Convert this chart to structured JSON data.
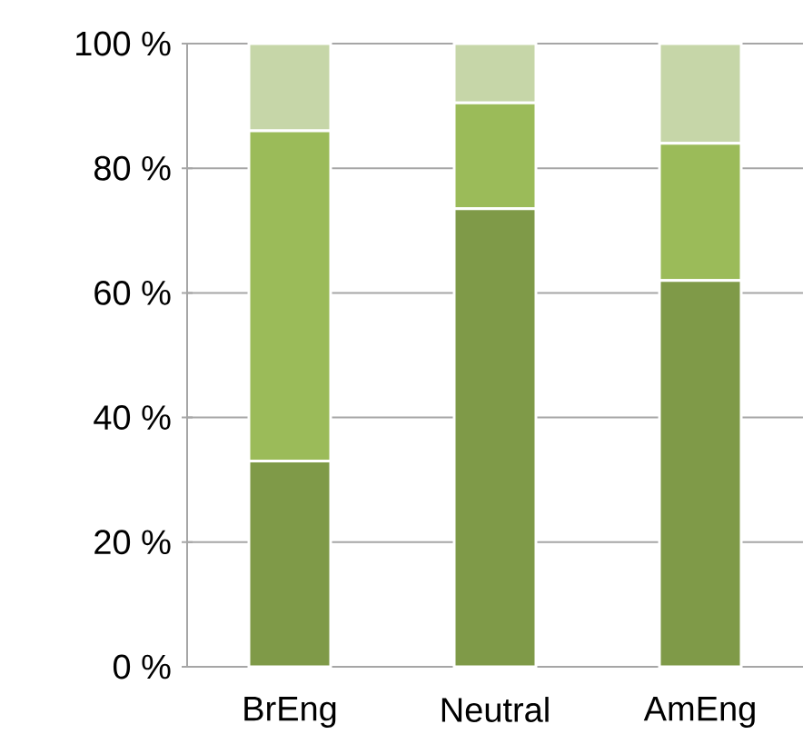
{
  "chart_data": {
    "type": "bar",
    "stacked": true,
    "grid": "y",
    "categories": [
      "BrEng",
      "Neutral",
      "AmEng"
    ],
    "series": [
      {
        "color": "#7f9a48",
        "values": [
          33,
          73.5,
          62
        ]
      },
      {
        "color": "#9bbb59",
        "values": [
          53,
          17,
          22
        ]
      },
      {
        "color": "#c6d6a8",
        "values": [
          14,
          9.5,
          16
        ]
      }
    ],
    "ylim": [
      0,
      100
    ],
    "yticks": [
      {
        "value": 0,
        "label": "0 %"
      },
      {
        "value": 20,
        "label": "20 %"
      },
      {
        "value": 40,
        "label": "40 %"
      },
      {
        "value": 60,
        "label": "60 %"
      },
      {
        "value": 80,
        "label": "80 %"
      },
      {
        "value": 100,
        "label": "100 %"
      }
    ]
  }
}
